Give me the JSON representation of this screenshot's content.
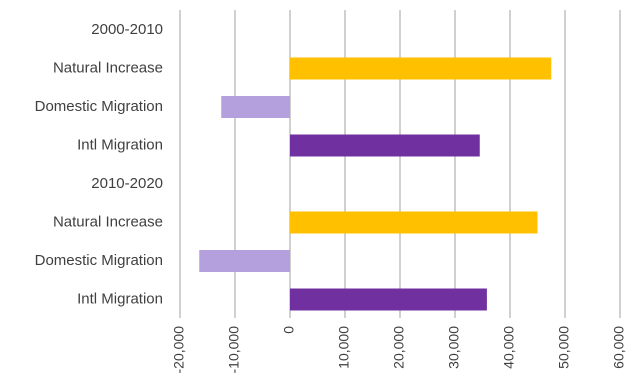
{
  "chart_data": {
    "type": "bar",
    "orientation": "horizontal",
    "categories": [
      "2000-2010",
      "Natural Increase",
      "Domestic Migration",
      "Intl Migration",
      "2010-2020",
      "Natural Increase",
      "Domestic Migration",
      "Intl Migration"
    ],
    "values": [
      null,
      47500,
      -12500,
      34500,
      null,
      45000,
      -16500,
      35800
    ],
    "bar_colors": [
      null,
      "#ffc000",
      "#b4a0dc",
      "#7030a0",
      null,
      "#ffc000",
      "#b4a0dc",
      "#7030a0"
    ],
    "xlim": [
      -20000,
      60000
    ],
    "x_ticks": [
      "-20,000",
      "-10,000",
      "0",
      "10,000",
      "20,000",
      "30,000",
      "40,000",
      "50,000",
      "60,000"
    ],
    "grid": "vertical",
    "title": "",
    "xlabel": "",
    "ylabel": ""
  }
}
